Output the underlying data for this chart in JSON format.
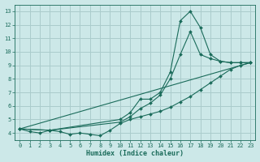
{
  "xlabel": "Humidex (Indice chaleur)",
  "background_color": "#cce8e8",
  "grid_color": "#aacccc",
  "line_color": "#1a6b5a",
  "xlim": [
    -0.5,
    23.5
  ],
  "ylim": [
    3.5,
    13.5
  ],
  "xticks": [
    0,
    1,
    2,
    3,
    4,
    5,
    6,
    7,
    8,
    9,
    10,
    11,
    12,
    13,
    14,
    15,
    16,
    17,
    18,
    19,
    20,
    21,
    22,
    23
  ],
  "yticks": [
    4,
    5,
    6,
    7,
    8,
    9,
    10,
    11,
    12,
    13
  ],
  "series": [
    {
      "x": [
        0,
        1,
        2,
        3,
        4,
        5,
        6,
        7,
        8,
        9,
        10,
        11,
        12,
        13,
        14,
        15,
        16,
        17,
        18,
        19,
        20,
        21,
        22,
        23
      ],
      "y": [
        4.3,
        4.1,
        4.0,
        4.2,
        4.1,
        3.9,
        4.0,
        3.9,
        3.8,
        4.2,
        4.7,
        5.0,
        5.2,
        5.4,
        5.6,
        5.9,
        6.3,
        6.7,
        7.2,
        7.7,
        8.2,
        8.7,
        9.0,
        9.2
      ],
      "marker": "D",
      "markersize": 2.0
    },
    {
      "x": [
        0,
        3,
        10,
        11,
        12,
        13,
        14,
        15,
        16,
        17,
        18,
        19,
        20,
        21,
        22,
        23
      ],
      "y": [
        4.3,
        4.2,
        5.0,
        5.5,
        6.5,
        6.5,
        7.0,
        8.5,
        12.3,
        13.0,
        11.8,
        9.8,
        9.3,
        9.2,
        9.2,
        9.2
      ],
      "marker": "D",
      "markersize": 2.0
    },
    {
      "x": [
        0,
        3,
        10,
        11,
        12,
        13,
        14,
        15,
        16,
        17,
        18,
        19,
        20,
        21,
        22,
        23
      ],
      "y": [
        4.3,
        4.2,
        4.8,
        5.2,
        5.8,
        6.2,
        6.8,
        8.0,
        9.8,
        11.5,
        9.8,
        9.5,
        9.3,
        9.2,
        9.2,
        9.2
      ],
      "marker": "D",
      "markersize": 2.0
    },
    {
      "x": [
        0,
        23
      ],
      "y": [
        4.3,
        9.2
      ],
      "marker": null,
      "markersize": 0
    }
  ],
  "tick_labelsize": 5.0,
  "xlabel_fontsize": 6.0
}
